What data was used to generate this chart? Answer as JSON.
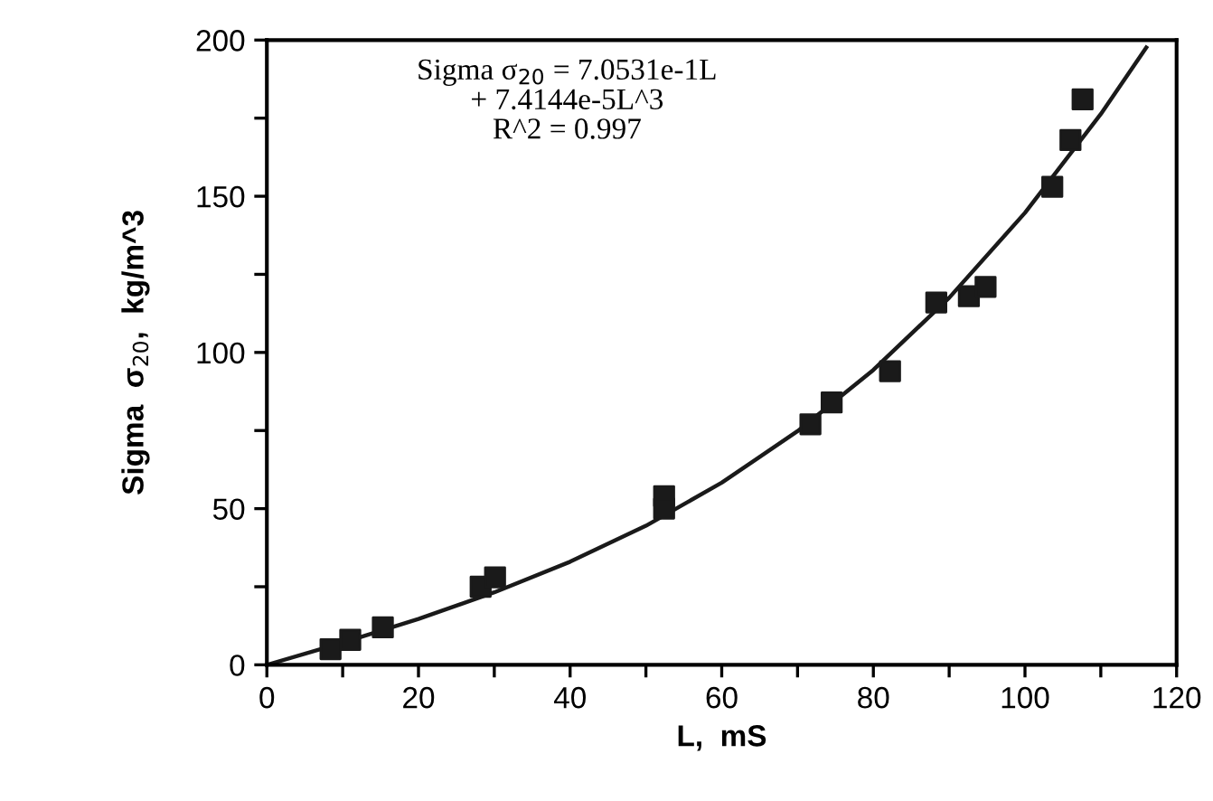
{
  "chart_data": {
    "type": "scatter",
    "xlabel": "L,  mS",
    "ylabel": "Sigma  σ$_{20}$,  kg/m^3",
    "annotations": [
      "Sigma σ$_{20}$ = 7.0531e-1L\n+ 7.4144e-5L^3\nR^2 = 0.997"
    ],
    "series": [
      {
        "color": "#1a1a1a",
        "marker": "square",
        "x": [
          8.4,
          11,
          15.3,
          28.2,
          30.1,
          52.4,
          52.4,
          71.7,
          74.5,
          82.2,
          88.3,
          92.6,
          94.8,
          103.6,
          106,
          107.6
        ],
        "values": [
          5,
          8,
          12,
          25,
          28,
          54,
          50,
          77,
          84,
          94,
          116,
          118,
          121,
          153,
          168,
          181
        ]
      },
      {
        "type": "line",
        "color": "#1a1a1a",
        "marker": "none",
        "x": [
          0,
          10,
          20,
          30,
          40,
          50,
          60,
          70,
          80,
          90,
          100,
          110,
          116
        ],
        "values": [
          0,
          7.1,
          14.7,
          23.2,
          33.0,
          44.5,
          58.3,
          74.8,
          94.4,
          117.5,
          144.7,
          176.3,
          197.6
        ]
      }
    ],
    "xlim": [
      0,
      120
    ],
    "ylim": [
      0,
      200
    ],
    "xticks": [
      0,
      {
        "value": 10,
        "label": null
      },
      20,
      {
        "value": 30,
        "label": null
      },
      40,
      {
        "value": 50,
        "label": null
      },
      60,
      {
        "value": 70,
        "label": null
      },
      80,
      {
        "value": 90,
        "label": null
      },
      100,
      {
        "value": 110,
        "label": null
      },
      120
    ],
    "yticks": [
      0,
      {
        "value": 25,
        "label": null
      },
      50,
      {
        "value": 75,
        "label": null
      },
      100,
      {
        "value": 125,
        "label": null
      },
      150,
      {
        "value": 175,
        "label": null
      },
      200
    ],
    "grid": false,
    "legend": false
  }
}
